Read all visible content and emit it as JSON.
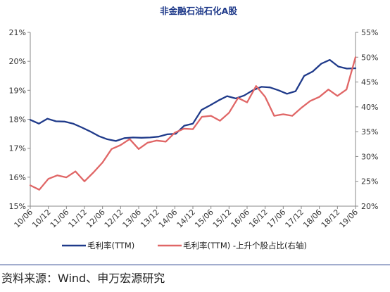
{
  "chart_data": {
    "type": "line",
    "title": "非金融石油石化A股",
    "x_ticks": [
      "10/06",
      "10/12",
      "11/06",
      "11/12",
      "12/06",
      "12/12",
      "13/06",
      "13/12",
      "14/06",
      "14/12",
      "15/06",
      "15/12",
      "16/06",
      "16/12",
      "17/06",
      "17/12",
      "18/06",
      "18/12",
      "19/06"
    ],
    "y_left": {
      "ticks": [
        "15%",
        "16%",
        "17%",
        "18%",
        "19%",
        "20%",
        "21%"
      ],
      "range": [
        15,
        21
      ]
    },
    "y_right": {
      "ticks": [
        "20%",
        "25%",
        "30%",
        "35%",
        "40%",
        "45%",
        "50%",
        "55%"
      ],
      "range": [
        20,
        55
      ]
    },
    "legend_placement": "bottom",
    "series": [
      {
        "name": "毛利率(TTM)",
        "axis": "left",
        "color": "#1f3a8a",
        "values": [
          17.98,
          17.85,
          18.02,
          17.93,
          17.92,
          17.85,
          17.72,
          17.58,
          17.42,
          17.31,
          17.25,
          17.35,
          17.37,
          17.36,
          17.37,
          17.4,
          17.48,
          17.5,
          17.78,
          17.85,
          18.32,
          18.48,
          18.65,
          18.8,
          18.72,
          18.82,
          19.0,
          19.12,
          19.1,
          19.0,
          18.88,
          18.97,
          19.5,
          19.65,
          19.92,
          20.05,
          19.82,
          19.75,
          19.76
        ]
      },
      {
        "name": "毛利率(TTM) -上升个股占比(右轴)",
        "axis": "right",
        "color": "#e06666",
        "values": [
          24.2,
          23.3,
          25.5,
          26.2,
          25.8,
          27.0,
          25.0,
          26.8,
          28.8,
          31.5,
          32.3,
          33.5,
          31.5,
          32.8,
          33.2,
          33.0,
          34.8,
          35.6,
          35.5,
          38.0,
          38.2,
          37.2,
          38.8,
          41.8,
          40.9,
          44.2,
          42.0,
          38.2,
          38.5,
          38.2,
          39.8,
          41.2,
          42.0,
          43.5,
          42.2,
          43.5,
          50.0
        ]
      }
    ]
  },
  "source": "资料来源：Wind、申万宏源研究"
}
